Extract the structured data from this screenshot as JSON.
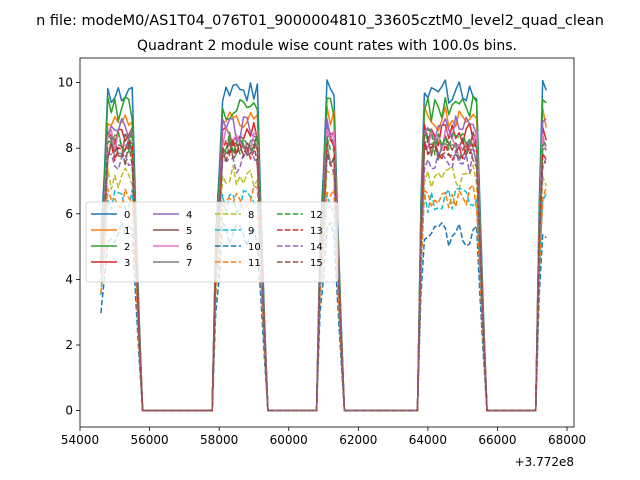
{
  "suptitle": "n file: modeM0/AS1T04_076T01_9000004810_33605cztM0_level2_quad_clean",
  "chart_data": {
    "type": "line",
    "title": "Quadrant 2 module wise count rates with 100.0s bins.",
    "xlabel": "",
    "ylabel": "",
    "x_offset_label": "+3.772e8",
    "xlim": [
      54000,
      68200
    ],
    "ylim": [
      -0.5,
      10.75
    ],
    "xticks": [
      54000,
      56000,
      58000,
      60000,
      62000,
      64000,
      66000,
      68000
    ],
    "xtick_labels": [
      "54000",
      "56000",
      "58000",
      "60000",
      "62000",
      "64000",
      "66000",
      "68000"
    ],
    "yticks": [
      0,
      2,
      4,
      6,
      8,
      10
    ],
    "ytick_labels": [
      "0",
      "2",
      "4",
      "6",
      "8",
      "10"
    ],
    "grid": false,
    "legend": {
      "placement": "center-left",
      "columns": 4
    },
    "segments": [
      {
        "start": 54600,
        "end": 55700
      },
      {
        "start": 57900,
        "end": 59300
      },
      {
        "start": 60900,
        "end": 61500
      },
      {
        "start": 63750,
        "end": 65600
      },
      {
        "start": 67150,
        "end": 67400
      }
    ],
    "series": [
      {
        "name": "0",
        "color": "#1f77b4",
        "dash": "solid",
        "level": 9.7
      },
      {
        "name": "1",
        "color": "#ff7f0e",
        "dash": "solid",
        "level": 8.9
      },
      {
        "name": "2",
        "color": "#2ca02c",
        "dash": "solid",
        "level": 9.2
      },
      {
        "name": "3",
        "color": "#d62728",
        "dash": "solid",
        "level": 8.4
      },
      {
        "name": "4",
        "color": "#9467bd",
        "dash": "solid",
        "level": 8.6
      },
      {
        "name": "5",
        "color": "#8c564b",
        "dash": "solid",
        "level": 8.1
      },
      {
        "name": "6",
        "color": "#e377c2",
        "dash": "solid",
        "level": 8.3
      },
      {
        "name": "7",
        "color": "#7f7f7f",
        "dash": "solid",
        "level": 7.9
      },
      {
        "name": "8",
        "color": "#bcbd22",
        "dash": "dashed",
        "level": 7.1
      },
      {
        "name": "9",
        "color": "#17becf",
        "dash": "dashed",
        "level": 6.4
      },
      {
        "name": "10",
        "color": "#1f77b4",
        "dash": "dashed",
        "level": 5.4
      },
      {
        "name": "11",
        "color": "#ff7f0e",
        "dash": "dashed",
        "level": 6.5
      },
      {
        "name": "12",
        "color": "#2ca02c",
        "dash": "dashed",
        "level": 8.2
      },
      {
        "name": "13",
        "color": "#d62728",
        "dash": "dashed",
        "level": 8.0
      },
      {
        "name": "14",
        "color": "#9467bd",
        "dash": "dashed",
        "level": 7.6
      },
      {
        "name": "15",
        "color": "#8c564b",
        "dash": "dashed",
        "level": 7.8
      }
    ]
  }
}
